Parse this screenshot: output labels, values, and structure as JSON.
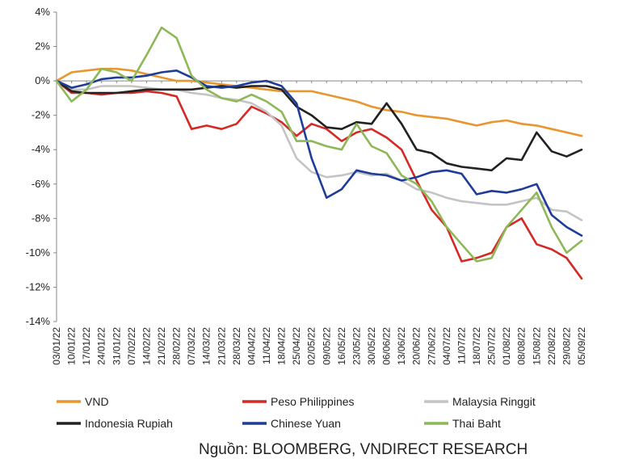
{
  "source": "Nguồn: BLOOMBERG, VNDIRECT RESEARCH",
  "chart_data": {
    "type": "line",
    "title": "",
    "xlabel": "",
    "ylabel": "",
    "y_unit": "%",
    "ylim": [
      -14,
      4
    ],
    "yticks": [
      "4%",
      "2%",
      "0%",
      "-2%",
      "-4%",
      "-6%",
      "-8%",
      "-10%",
      "-12%",
      "-14%"
    ],
    "ytick_values": [
      4,
      2,
      0,
      -2,
      -4,
      -6,
      -8,
      -10,
      -12,
      -14
    ],
    "xticks": [
      "03/01/22",
      "10/01/22",
      "17/01/22",
      "24/01/22",
      "31/01/22",
      "07/02/22",
      "14/02/22",
      "21/02/22",
      "28/02/22",
      "07/03/22",
      "14/03/22",
      "21/03/22",
      "28/03/22",
      "04/04/22",
      "11/04/22",
      "18/04/22",
      "25/04/22",
      "02/05/22",
      "09/05/22",
      "16/05/22",
      "23/05/22",
      "30/05/22",
      "06/06/22",
      "13/06/22",
      "20/06/22",
      "27/06/22",
      "04/07/22",
      "11/07/22",
      "18/07/22",
      "25/07/22",
      "01/08/22",
      "08/08/22",
      "15/08/22",
      "22/08/22",
      "29/08/22",
      "05/09/22"
    ],
    "grid": false,
    "legend_position": "bottom",
    "series": [
      {
        "name": "VND",
        "color": "#E8962E",
        "values": [
          0,
          0.5,
          0.6,
          0.7,
          0.7,
          0.6,
          0.4,
          0.2,
          0,
          0,
          -0.1,
          -0.2,
          -0.3,
          -0.4,
          -0.5,
          -0.6,
          -0.6,
          -0.6,
          -0.8,
          -1.0,
          -1.2,
          -1.5,
          -1.7,
          -1.8,
          -2.0,
          -2.1,
          -2.2,
          -2.4,
          -2.6,
          -2.4,
          -2.3,
          -2.5,
          -2.6,
          -2.8,
          -3.0,
          -3.2
        ]
      },
      {
        "name": "Peso Philippines",
        "color": "#D42A26",
        "values": [
          0,
          -0.7,
          -0.7,
          -0.8,
          -0.7,
          -0.7,
          -0.6,
          -0.7,
          -0.9,
          -2.8,
          -2.6,
          -2.8,
          -2.5,
          -1.5,
          -1.9,
          -2.4,
          -3.2,
          -2.5,
          -2.8,
          -3.5,
          -3.0,
          -2.8,
          -3.3,
          -4.0,
          -5.8,
          -7.5,
          -8.5,
          -10.5,
          -10.3,
          -10.0,
          -8.5,
          -8.0,
          -9.5,
          -9.8,
          -10.3,
          -11.5
        ]
      },
      {
        "name": "Malaysia Ringgit",
        "color": "#C4C4C4",
        "values": [
          0,
          -0.5,
          -0.5,
          -0.3,
          -0.3,
          -0.3,
          -0.4,
          -0.5,
          -0.5,
          -0.7,
          -0.8,
          -1.0,
          -1.1,
          -1.3,
          -1.8,
          -2.6,
          -4.5,
          -5.3,
          -5.6,
          -5.5,
          -5.3,
          -5.5,
          -5.4,
          -5.8,
          -6.3,
          -6.5,
          -6.8,
          -7.0,
          -7.1,
          -7.2,
          -7.2,
          -7.0,
          -6.8,
          -7.5,
          -7.6,
          -8.1
        ]
      },
      {
        "name": "Indonesia Rupiah",
        "color": "#222222",
        "values": [
          0,
          -0.6,
          -0.7,
          -0.7,
          -0.7,
          -0.6,
          -0.5,
          -0.5,
          -0.5,
          -0.5,
          -0.4,
          -0.3,
          -0.4,
          -0.3,
          -0.3,
          -0.5,
          -1.5,
          -2.0,
          -2.7,
          -2.8,
          -2.4,
          -2.5,
          -1.3,
          -2.5,
          -4.0,
          -4.2,
          -4.8,
          -5.0,
          -5.1,
          -5.2,
          -4.5,
          -4.6,
          -3.0,
          -4.1,
          -4.4,
          -4.0
        ]
      },
      {
        "name": "Chinese Yuan",
        "color": "#1F3C99",
        "values": [
          0,
          -0.4,
          -0.2,
          0.1,
          0.2,
          0.2,
          0.3,
          0.5,
          0.6,
          0.2,
          -0.3,
          -0.4,
          -0.3,
          -0.1,
          0,
          -0.3,
          -1.3,
          -4.5,
          -6.8,
          -6.3,
          -5.2,
          -5.4,
          -5.5,
          -5.8,
          -5.6,
          -5.3,
          -5.2,
          -5.4,
          -6.6,
          -6.4,
          -6.5,
          -6.3,
          -6.0,
          -7.8,
          -8.5,
          -9.0
        ]
      },
      {
        "name": "Thai Baht",
        "color": "#8DB858",
        "values": [
          0,
          -1.2,
          -0.5,
          0.7,
          0.5,
          0,
          1.5,
          3.1,
          2.5,
          0.3,
          -0.5,
          -1.0,
          -1.2,
          -0.8,
          -1.2,
          -1.8,
          -3.5,
          -3.5,
          -3.8,
          -4.0,
          -2.5,
          -3.8,
          -4.2,
          -5.5,
          -6.0,
          -7.0,
          -8.5,
          -9.5,
          -10.5,
          -10.3,
          -8.5,
          -7.5,
          -6.5,
          -8.5,
          -10.0,
          -9.3
        ]
      }
    ]
  }
}
